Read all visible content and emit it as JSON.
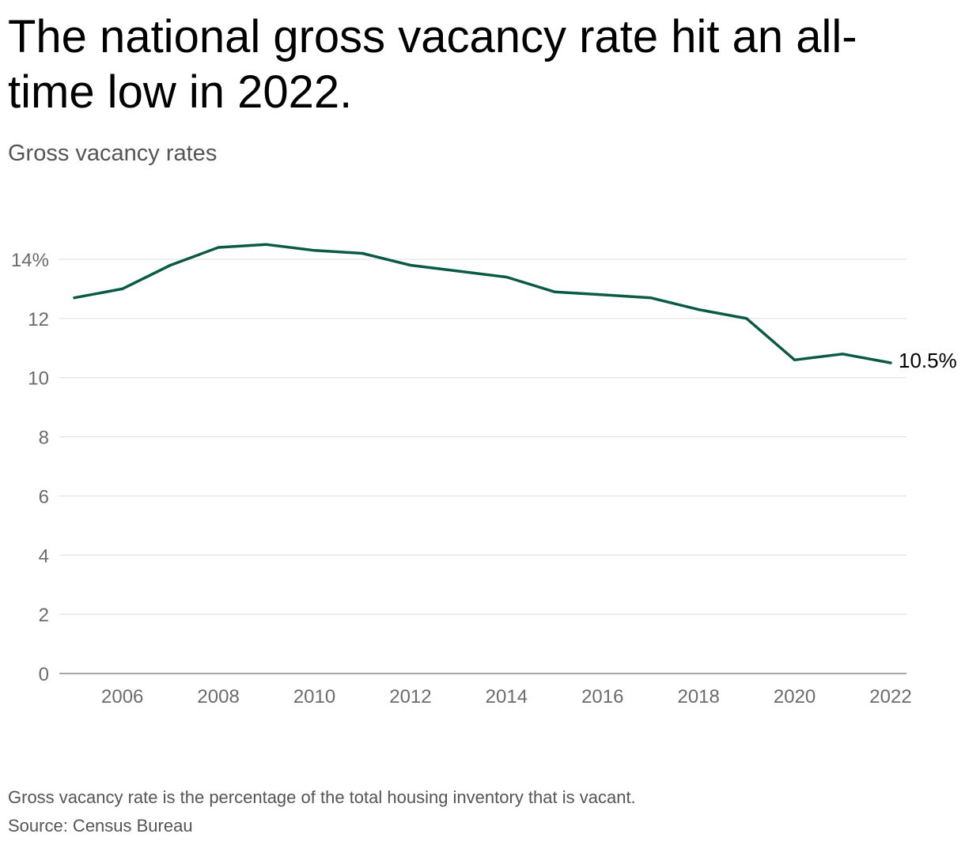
{
  "header": {
    "title": "The national gross vacancy rate hit an all-time low in 2022.",
    "subtitle": "Gross vacancy rates"
  },
  "footer": {
    "note": "Gross vacancy rate is the percentage of the total housing inventory that is vacant.",
    "source": "Source: Census Bureau"
  },
  "chart_data": {
    "type": "line",
    "x": [
      2005,
      2006,
      2007,
      2008,
      2009,
      2010,
      2011,
      2012,
      2013,
      2014,
      2015,
      2016,
      2017,
      2018,
      2019,
      2020,
      2021,
      2022
    ],
    "series": [
      {
        "values": [
          12.7,
          13.0,
          13.8,
          14.4,
          14.5,
          14.3,
          14.2,
          13.8,
          13.6,
          13.4,
          12.9,
          12.8,
          12.7,
          12.3,
          12.0,
          10.6,
          10.8,
          10.5
        ]
      }
    ],
    "y_ticks": [
      {
        "value": 0,
        "label": "0"
      },
      {
        "value": 2,
        "label": "2"
      },
      {
        "value": 4,
        "label": "4"
      },
      {
        "value": 6,
        "label": "6"
      },
      {
        "value": 8,
        "label": "8"
      },
      {
        "value": 10,
        "label": "10"
      },
      {
        "value": 12,
        "label": "12"
      },
      {
        "value": 14,
        "label": "14%"
      }
    ],
    "x_ticks": [
      2006,
      2008,
      2010,
      2012,
      2014,
      2016,
      2018,
      2020,
      2022
    ],
    "ylim": [
      0,
      14
    ],
    "xlim": [
      2005,
      2022
    ],
    "end_label": "10.5%",
    "grid": true,
    "line_color": "#0b5a45",
    "grid_color": "#dddddd",
    "axis_color": "#888888"
  }
}
